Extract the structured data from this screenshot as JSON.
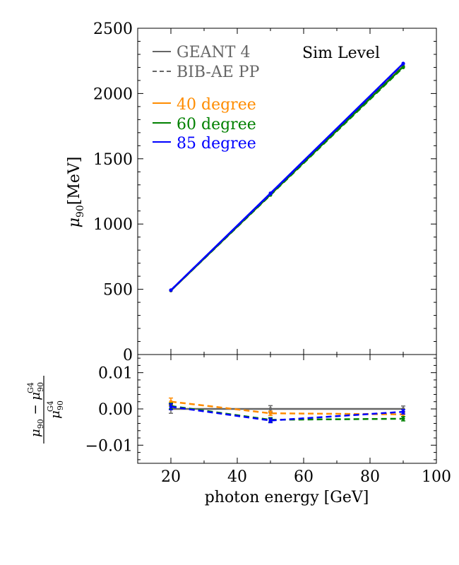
{
  "chart_data": [
    {
      "panel": "main",
      "type": "line",
      "xlim": [
        10,
        100
      ],
      "ylim": [
        0,
        2500
      ],
      "xticks": [
        20,
        40,
        60,
        80,
        100
      ],
      "yticks": [
        0,
        500,
        1000,
        1500,
        2000,
        2500
      ],
      "ylabel_main": "μ",
      "ylabel_sub": "90",
      "ylabel_unit": "[MeV]",
      "annotation": "Sim Level",
      "legend": {
        "styles": [
          {
            "name": "GEANT 4",
            "color": "#666666",
            "dash": "solid"
          },
          {
            "name": "BIB-AE PP",
            "color": "#666666",
            "dash": "dashed"
          }
        ],
        "angles": [
          {
            "name": "40 degree",
            "color": "#ff8c00"
          },
          {
            "name": "60 degree",
            "color": "#008000"
          },
          {
            "name": "85 degree",
            "color": "#0000ff"
          }
        ]
      },
      "x": [
        20,
        50,
        90
      ],
      "series": [
        {
          "name": "40 degree GEANT 4",
          "color": "#ff8c00",
          "dash": "solid",
          "values": [
            490,
            1225,
            2210
          ]
        },
        {
          "name": "40 degree BIB-AE PP",
          "color": "#ff8c00",
          "dash": "dashed",
          "values": [
            491,
            1224,
            2208
          ]
        },
        {
          "name": "60 degree GEANT 4",
          "color": "#008000",
          "dash": "solid",
          "values": [
            491,
            1226,
            2206
          ]
        },
        {
          "name": "60 degree BIB-AE PP",
          "color": "#008000",
          "dash": "dashed",
          "values": [
            491,
            1222,
            2200
          ]
        },
        {
          "name": "85 degree GEANT 4",
          "color": "#0000ff",
          "dash": "solid",
          "values": [
            493,
            1236,
            2230
          ]
        },
        {
          "name": "85 degree BIB-AE PP",
          "color": "#0000ff",
          "dash": "dashed",
          "values": [
            493,
            1232,
            2228
          ]
        }
      ]
    },
    {
      "panel": "ratio",
      "type": "line",
      "xlim": [
        10,
        100
      ],
      "ylim": [
        -0.015,
        0.015
      ],
      "xticks": [
        20,
        40,
        60,
        80,
        100
      ],
      "yticks": [
        -0.01,
        0.0,
        0.01
      ],
      "ytick_labels": [
        "−0.01",
        "0.00",
        "0.01"
      ],
      "xlabel": "photon energy [GeV]",
      "ylabel": "(μ90 − μ90 G4) / μ90 G4",
      "x": [
        20,
        50,
        90
      ],
      "series": [
        {
          "name": "GEANT 4 reference",
          "color": "#666666",
          "dash": "solid",
          "values": [
            0.0,
            0.0,
            0.0
          ],
          "errors": [
            0.0012,
            0.0009,
            0.0008
          ]
        },
        {
          "name": "40 degree",
          "color": "#ff8c00",
          "dash": "dashed",
          "values": [
            0.002,
            -0.0012,
            -0.0015
          ],
          "errors": [
            0.001,
            0.0006,
            0.0006
          ]
        },
        {
          "name": "60 degree",
          "color": "#008000",
          "dash": "dashed",
          "values": [
            0.0008,
            -0.003,
            -0.0027
          ],
          "errors": [
            0.0008,
            0.0006,
            0.0006
          ]
        },
        {
          "name": "85 degree",
          "color": "#0000ff",
          "dash": "dashed",
          "values": [
            0.0006,
            -0.0032,
            -0.0008
          ],
          "errors": [
            0.0008,
            0.0006,
            0.0006
          ]
        }
      ]
    }
  ]
}
